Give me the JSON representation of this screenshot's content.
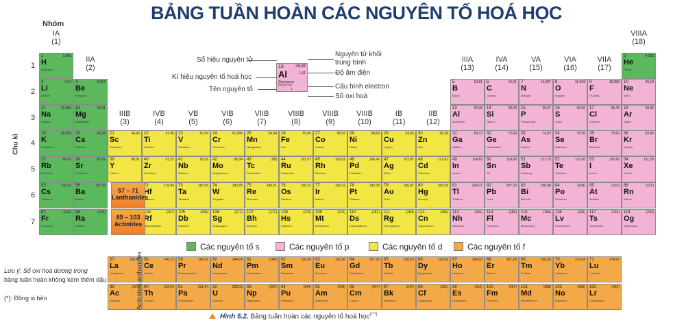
{
  "title": "BẢNG TUẦN HOÀN CÁC NGUYÊN TỐ HOÁ HỌC",
  "group_header_label": "Nhóm",
  "period_axis_label": "Chu kì",
  "groups": [
    {
      "roman": "IA",
      "num": "(1)"
    },
    {
      "roman": "IIA",
      "num": "(2)"
    },
    {
      "roman": "IIIB",
      "num": "(3)"
    },
    {
      "roman": "IVB",
      "num": "(4)"
    },
    {
      "roman": "VB",
      "num": "(5)"
    },
    {
      "roman": "VIB",
      "num": "(6)"
    },
    {
      "roman": "VIIB",
      "num": "(7)"
    },
    {
      "roman": "VIIIB",
      "num": "(8)"
    },
    {
      "roman": "VIIIB",
      "num": "(9)"
    },
    {
      "roman": "VIIIB",
      "num": "(10)"
    },
    {
      "roman": "IB",
      "num": "(11)"
    },
    {
      "roman": "IIB",
      "num": "(12)"
    },
    {
      "roman": "IIIA",
      "num": "(13)"
    },
    {
      "roman": "IVA",
      "num": "(14)"
    },
    {
      "roman": "VA",
      "num": "(15)"
    },
    {
      "roman": "VIA",
      "num": "(16)"
    },
    {
      "roman": "VIIA",
      "num": "(17)"
    },
    {
      "roman": "VIIIA",
      "num": "(18)"
    }
  ],
  "periods": [
    "1",
    "2",
    "3",
    "4",
    "5",
    "6",
    "7"
  ],
  "block_colors": {
    "s": "#5cb85c",
    "p": "#f3b3d4",
    "d": "#f2e645",
    "f": "#f4a948"
  },
  "key": {
    "labels_left": [
      "Số hiệu nguyên tử",
      "Kí hiệu nguyên tố hoá học",
      "Tên nguyên tố"
    ],
    "labels_right": [
      "Nguyên tử khối trung bình",
      "Độ âm điện",
      "Cấu hình electron",
      "Số oxi hoá"
    ],
    "sample": {
      "z": "13",
      "mass": "26,98",
      "en": "1,61",
      "symbol": "Al",
      "name": "Aluminium",
      "config": "[Ne]3s²3p¹",
      "ox": "3"
    }
  },
  "lanthanide_block": {
    "range": "57 – 71",
    "label": "Lanthanides"
  },
  "actinide_block": {
    "range": "89 – 103",
    "label": "Actinides"
  },
  "lanthanide_row_label": "Lanthanides",
  "actinide_row_label": "Actinides",
  "legend": [
    "Các nguyên tố s",
    "Các nguyên tố p",
    "Các nguyên tố d",
    "Các nguyên tố f"
  ],
  "note_lines": [
    "Lưu ý: Số oxi hoá dương trong",
    "bảng tuần hoàn không kèm thêm dấu",
    "(*): Đồng vị bền"
  ],
  "caption_fig": "Hình 5.2.",
  "caption_text": "Bảng tuần hoàn các nguyên tố hoá học",
  "caption_sup": "(***)",
  "elements": [
    {
      "z": 1,
      "s": "H",
      "n": "Hydrogen",
      "m": "1,008",
      "b": "s",
      "g": 1,
      "p": 1
    },
    {
      "z": 2,
      "s": "He",
      "n": "Helium",
      "m": "4,003",
      "b": "s",
      "g": 18,
      "p": 1
    },
    {
      "z": 3,
      "s": "Li",
      "n": "Lithium",
      "m": "6,94",
      "b": "s",
      "g": 1,
      "p": 2
    },
    {
      "z": 4,
      "s": "Be",
      "n": "Beryllium",
      "m": "9,012",
      "b": "s",
      "g": 2,
      "p": 2
    },
    {
      "z": 5,
      "s": "B",
      "n": "Boron",
      "m": "10,81",
      "b": "p",
      "g": 13,
      "p": 2
    },
    {
      "z": 6,
      "s": "C",
      "n": "Carbon",
      "m": "12,01",
      "b": "p",
      "g": 14,
      "p": 2
    },
    {
      "z": 7,
      "s": "N",
      "n": "Nitrogen",
      "m": "14,007",
      "b": "p",
      "g": 15,
      "p": 2
    },
    {
      "z": 8,
      "s": "O",
      "n": "Oxygen",
      "m": "15,999",
      "b": "p",
      "g": 16,
      "p": 2
    },
    {
      "z": 9,
      "s": "F",
      "n": "Fluorine",
      "m": "18,998",
      "b": "p",
      "g": 17,
      "p": 2
    },
    {
      "z": 10,
      "s": "Ne",
      "n": "Neon",
      "m": "20,18",
      "b": "p",
      "g": 18,
      "p": 2
    },
    {
      "z": 11,
      "s": "Na",
      "n": "Sodium",
      "m": "22,989",
      "b": "s",
      "g": 1,
      "p": 3
    },
    {
      "z": 12,
      "s": "Mg",
      "n": "Magnesium",
      "m": "24,31",
      "b": "s",
      "g": 2,
      "p": 3
    },
    {
      "z": 13,
      "s": "Al",
      "n": "Aluminium",
      "m": "26,98",
      "b": "p",
      "g": 13,
      "p": 3
    },
    {
      "z": 14,
      "s": "Si",
      "n": "Silicon",
      "m": "28,09",
      "b": "p",
      "g": 14,
      "p": 3
    },
    {
      "z": 15,
      "s": "P",
      "n": "Phosphorus",
      "m": "30,97",
      "b": "p",
      "g": 15,
      "p": 3
    },
    {
      "z": 16,
      "s": "S",
      "n": "Sulfur",
      "m": "32,06",
      "b": "p",
      "g": 16,
      "p": 3
    },
    {
      "z": 17,
      "s": "Cl",
      "n": "Chlorine",
      "m": "35,45",
      "b": "p",
      "g": 17,
      "p": 3
    },
    {
      "z": 18,
      "s": "Ar",
      "n": "Argon",
      "m": "39,95",
      "b": "p",
      "g": 18,
      "p": 3
    },
    {
      "z": 19,
      "s": "K",
      "n": "Potassium",
      "m": "39,098",
      "b": "s",
      "g": 1,
      "p": 4
    },
    {
      "z": 20,
      "s": "Ca",
      "n": "Calcium",
      "m": "40,08",
      "b": "s",
      "g": 2,
      "p": 4
    },
    {
      "z": 21,
      "s": "Sc",
      "n": "Scandium",
      "m": "44,96",
      "b": "d",
      "g": 3,
      "p": 4
    },
    {
      "z": 22,
      "s": "Ti",
      "n": "Titanium",
      "m": "47,90",
      "b": "d",
      "g": 4,
      "p": 4
    },
    {
      "z": 23,
      "s": "V",
      "n": "Vanadium",
      "m": "50,94",
      "b": "d",
      "g": 5,
      "p": 4
    },
    {
      "z": 24,
      "s": "Cr",
      "n": "Chromium",
      "m": "51,996",
      "b": "d",
      "g": 6,
      "p": 4
    },
    {
      "z": 25,
      "s": "Mn",
      "n": "Manganese",
      "m": "54,94",
      "b": "d",
      "g": 7,
      "p": 4
    },
    {
      "z": 26,
      "s": "Fe",
      "n": "Iron",
      "m": "55,85",
      "b": "d",
      "g": 8,
      "p": 4
    },
    {
      "z": 27,
      "s": "Co",
      "n": "Cobalt",
      "m": "58,93",
      "b": "d",
      "g": 9,
      "p": 4
    },
    {
      "z": 28,
      "s": "Ni",
      "n": "Nickel",
      "m": "58,69",
      "b": "d",
      "g": 10,
      "p": 4
    },
    {
      "z": 29,
      "s": "Cu",
      "n": "Copper",
      "m": "63,55",
      "b": "d",
      "g": 11,
      "p": 4
    },
    {
      "z": 30,
      "s": "Zn",
      "n": "Zinc",
      "m": "65,38",
      "b": "d",
      "g": 12,
      "p": 4
    },
    {
      "z": 31,
      "s": "Ga",
      "n": "Gallium",
      "m": "69,72",
      "b": "p",
      "g": 13,
      "p": 4
    },
    {
      "z": 32,
      "s": "Ge",
      "n": "Germanium",
      "m": "72,64",
      "b": "p",
      "g": 14,
      "p": 4
    },
    {
      "z": 33,
      "s": "As",
      "n": "Arsenic",
      "m": "74,92",
      "b": "p",
      "g": 15,
      "p": 4
    },
    {
      "z": 34,
      "s": "Se",
      "n": "Selenium",
      "m": "78,96",
      "b": "p",
      "g": 16,
      "p": 4
    },
    {
      "z": 35,
      "s": "Br",
      "n": "Bromine",
      "m": "79,90",
      "b": "p",
      "g": 17,
      "p": 4
    },
    {
      "z": 36,
      "s": "Kr",
      "n": "Krypton",
      "m": "83,80",
      "b": "p",
      "g": 18,
      "p": 4
    },
    {
      "z": 37,
      "s": "Rb",
      "n": "Rubidium",
      "m": "85,47",
      "b": "s",
      "g": 1,
      "p": 5
    },
    {
      "z": 38,
      "s": "Sr",
      "n": "Strontium",
      "m": "87,62",
      "b": "s",
      "g": 2,
      "p": 5
    },
    {
      "z": 39,
      "s": "Y",
      "n": "Yttrium",
      "m": "88,91",
      "b": "d",
      "g": 3,
      "p": 5
    },
    {
      "z": 40,
      "s": "Zr",
      "n": "Zirconium",
      "m": "91,22",
      "b": "d",
      "g": 4,
      "p": 5
    },
    {
      "z": 41,
      "s": "Nb",
      "n": "Niobium",
      "m": "92,91",
      "b": "d",
      "g": 5,
      "p": 5
    },
    {
      "z": 42,
      "s": "Mo",
      "n": "Molybdenum",
      "m": "95,94",
      "b": "d",
      "g": 6,
      "p": 5
    },
    {
      "z": 43,
      "s": "Tc",
      "n": "Technetium",
      "m": "(98)",
      "b": "d",
      "g": 7,
      "p": 5
    },
    {
      "z": 44,
      "s": "Ru",
      "n": "Ruthenium",
      "m": "101,07",
      "b": "d",
      "g": 8,
      "p": 5
    },
    {
      "z": 45,
      "s": "Rh",
      "n": "Rhodium",
      "m": "102,91",
      "b": "d",
      "g": 9,
      "p": 5
    },
    {
      "z": 46,
      "s": "Pd",
      "n": "Palladium",
      "m": "106,42",
      "b": "d",
      "g": 10,
      "p": 5
    },
    {
      "z": 47,
      "s": "Ag",
      "n": "Silver",
      "m": "107,87",
      "b": "d",
      "g": 11,
      "p": 5
    },
    {
      "z": 48,
      "s": "Cd",
      "n": "Cadmium",
      "m": "112,41",
      "b": "d",
      "g": 12,
      "p": 5
    },
    {
      "z": 49,
      "s": "In",
      "n": "Indium",
      "m": "114,82",
      "b": "p",
      "g": 13,
      "p": 5
    },
    {
      "z": 50,
      "s": "Sn",
      "n": "Tin",
      "m": "118,69",
      "b": "p",
      "g": 14,
      "p": 5
    },
    {
      "z": 51,
      "s": "Sb",
      "n": "Antimony",
      "m": "121,75",
      "b": "p",
      "g": 15,
      "p": 5
    },
    {
      "z": 52,
      "s": "Te",
      "n": "Tellurium",
      "m": "127,60",
      "b": "p",
      "g": 16,
      "p": 5
    },
    {
      "z": 53,
      "s": "I",
      "n": "Iodine",
      "m": "126,90",
      "b": "p",
      "g": 17,
      "p": 5
    },
    {
      "z": 54,
      "s": "Xe",
      "n": "Xenon",
      "m": "131,29",
      "b": "p",
      "g": 18,
      "p": 5
    },
    {
      "z": 55,
      "s": "Cs",
      "n": "Caesium",
      "m": "132,91",
      "b": "s",
      "g": 1,
      "p": 6
    },
    {
      "z": 56,
      "s": "Ba",
      "n": "Barium",
      "m": "137,33",
      "b": "s",
      "g": 2,
      "p": 6
    },
    {
      "z": 72,
      "s": "Hf",
      "n": "Hafnium",
      "m": "178,49",
      "b": "d",
      "g": 4,
      "p": 6
    },
    {
      "z": 73,
      "s": "Ta",
      "n": "Tantalum",
      "m": "180,95",
      "b": "d",
      "g": 5,
      "p": 6
    },
    {
      "z": 74,
      "s": "W",
      "n": "Tungsten",
      "m": "183,85",
      "b": "d",
      "g": 6,
      "p": 6
    },
    {
      "z": 75,
      "s": "Re",
      "n": "Rhenium",
      "m": "186,21",
      "b": "d",
      "g": 7,
      "p": 6
    },
    {
      "z": 76,
      "s": "Os",
      "n": "Osmium",
      "m": "190,23",
      "b": "d",
      "g": 8,
      "p": 6
    },
    {
      "z": 77,
      "s": "Ir",
      "n": "Iridium",
      "m": "192,22",
      "b": "d",
      "g": 9,
      "p": 6
    },
    {
      "z": 78,
      "s": "Pt",
      "n": "Platinum",
      "m": "195,08",
      "b": "d",
      "g": 10,
      "p": 6
    },
    {
      "z": 79,
      "s": "Au",
      "n": "Gold",
      "m": "196,97",
      "b": "d",
      "g": 11,
      "p": 6
    },
    {
      "z": 80,
      "s": "Hg",
      "n": "Mercury",
      "m": "200,59",
      "b": "d",
      "g": 12,
      "p": 6
    },
    {
      "z": 81,
      "s": "Tl",
      "n": "Thallium",
      "m": "204,37",
      "b": "p",
      "g": 13,
      "p": 6
    },
    {
      "z": 82,
      "s": "Pb",
      "n": "Lead",
      "m": "207,20",
      "b": "p",
      "g": 14,
      "p": 6
    },
    {
      "z": 83,
      "s": "Bi",
      "n": "Bismuth",
      "m": "208,98",
      "b": "p",
      "g": 15,
      "p": 6
    },
    {
      "z": 84,
      "s": "Po",
      "n": "Polonium",
      "m": "(209)",
      "b": "p",
      "g": 16,
      "p": 6
    },
    {
      "z": 85,
      "s": "At",
      "n": "Astatine",
      "m": "(210)",
      "b": "p",
      "g": 17,
      "p": 6
    },
    {
      "z": 86,
      "s": "Rn",
      "n": "Radon",
      "m": "(222)",
      "b": "p",
      "g": 18,
      "p": 6
    },
    {
      "z": 87,
      "s": "Fr",
      "n": "Francium",
      "m": "(223)",
      "b": "s",
      "g": 1,
      "p": 7
    },
    {
      "z": 88,
      "s": "Ra",
      "n": "Radium",
      "m": "(226)",
      "b": "s",
      "g": 2,
      "p": 7
    },
    {
      "z": 104,
      "s": "Rf",
      "n": "Rutherfordium",
      "m": "(267)",
      "b": "d",
      "g": 4,
      "p": 7
    },
    {
      "z": 105,
      "s": "Db",
      "n": "Dubnium",
      "m": "(268)",
      "b": "d",
      "g": 5,
      "p": 7
    },
    {
      "z": 106,
      "s": "Sg",
      "n": "Seaborgium",
      "m": "(271)",
      "b": "d",
      "g": 6,
      "p": 7
    },
    {
      "z": 107,
      "s": "Bh",
      "n": "Bohrium",
      "m": "(272)",
      "b": "d",
      "g": 7,
      "p": 7
    },
    {
      "z": 108,
      "s": "Hs",
      "n": "Hassium",
      "m": "(270)",
      "b": "d",
      "g": 8,
      "p": 7
    },
    {
      "z": 109,
      "s": "Mt",
      "n": "Meitnerium",
      "m": "(276)",
      "b": "d",
      "g": 9,
      "p": 7
    },
    {
      "z": 110,
      "s": "Ds",
      "n": "Darmstadtium",
      "m": "(281)",
      "b": "d",
      "g": 10,
      "p": 7
    },
    {
      "z": 111,
      "s": "Rg",
      "n": "Roentgenium",
      "m": "(280)",
      "b": "d",
      "g": 11,
      "p": 7
    },
    {
      "z": 112,
      "s": "Cn",
      "n": "Copernicium",
      "m": "(285)",
      "b": "d",
      "g": 12,
      "p": 7
    },
    {
      "z": 113,
      "s": "Nh",
      "n": "Nihonium",
      "m": "(286)",
      "b": "p",
      "g": 13,
      "p": 7
    },
    {
      "z": 114,
      "s": "Fl",
      "n": "Flerovium",
      "m": "(289)",
      "b": "p",
      "g": 14,
      "p": 7
    },
    {
      "z": 115,
      "s": "Mc",
      "n": "Moscovium",
      "m": "(289)",
      "b": "p",
      "g": 15,
      "p": 7
    },
    {
      "z": 116,
      "s": "Lv",
      "n": "Livermorium",
      "m": "(293)",
      "b": "p",
      "g": 16,
      "p": 7
    },
    {
      "z": 117,
      "s": "Ts",
      "n": "Tennessine",
      "m": "(294)",
      "b": "p",
      "g": 17,
      "p": 7
    },
    {
      "z": 118,
      "s": "Og",
      "n": "Oganesson",
      "m": "(294)",
      "b": "p",
      "g": 18,
      "p": 7
    },
    {
      "z": 57,
      "s": "La",
      "n": "Lanthanum",
      "m": "138,91",
      "b": "f",
      "g": 3,
      "p": 8
    },
    {
      "z": 58,
      "s": "Ce",
      "n": "Cerium",
      "m": "140,12",
      "b": "f",
      "g": 4,
      "p": 8
    },
    {
      "z": 59,
      "s": "Pr",
      "n": "Praseodymium",
      "m": "140,91",
      "b": "f",
      "g": 5,
      "p": 8
    },
    {
      "z": 60,
      "s": "Nd",
      "n": "Neodymium",
      "m": "144,24",
      "b": "f",
      "g": 6,
      "p": 8
    },
    {
      "z": 61,
      "s": "Pm",
      "n": "Promethium",
      "m": "(145)",
      "b": "f",
      "g": 7,
      "p": 8
    },
    {
      "z": 62,
      "s": "Sm",
      "n": "Samarium",
      "m": "150,36",
      "b": "f",
      "g": 8,
      "p": 8
    },
    {
      "z": 63,
      "s": "Eu",
      "n": "Europium",
      "m": "151,96",
      "b": "f",
      "g": 9,
      "p": 8
    },
    {
      "z": 64,
      "s": "Gd",
      "n": "Gadolinium",
      "m": "157,25",
      "b": "f",
      "g": 10,
      "p": 8
    },
    {
      "z": 65,
      "s": "Tb",
      "n": "Terbium",
      "m": "158,93",
      "b": "f",
      "g": 11,
      "p": 8
    },
    {
      "z": 66,
      "s": "Dy",
      "n": "Dysprosium",
      "m": "162,50",
      "b": "f",
      "g": 12,
      "p": 8
    },
    {
      "z": 67,
      "s": "Ho",
      "n": "Holmium",
      "m": "164,93",
      "b": "f",
      "g": 13,
      "p": 8
    },
    {
      "z": 68,
      "s": "Er",
      "n": "Erbium",
      "m": "167,26",
      "b": "f",
      "g": 14,
      "p": 8
    },
    {
      "z": 69,
      "s": "Tm",
      "n": "Thulium",
      "m": "168,93",
      "b": "f",
      "g": 15,
      "p": 8
    },
    {
      "z": 70,
      "s": "Yb",
      "n": "Ytterbium",
      "m": "173,04",
      "b": "f",
      "g": 16,
      "p": 8
    },
    {
      "z": 71,
      "s": "Lu",
      "n": "Lutetium",
      "m": "174,97",
      "b": "f",
      "g": 17,
      "p": 8
    },
    {
      "z": 89,
      "s": "Ac",
      "n": "Actinium",
      "m": "(227)",
      "b": "f",
      "g": 3,
      "p": 9
    },
    {
      "z": 90,
      "s": "Th",
      "n": "Thorium",
      "m": "232,04",
      "b": "f",
      "g": 4,
      "p": 9
    },
    {
      "z": 91,
      "s": "Pa",
      "n": "Protactinium",
      "m": "231,04",
      "b": "f",
      "g": 5,
      "p": 9
    },
    {
      "z": 92,
      "s": "U",
      "n": "Uranium",
      "m": "238,03",
      "b": "f",
      "g": 6,
      "p": 9
    },
    {
      "z": 93,
      "s": "Np",
      "n": "Neptunium",
      "m": "(237)",
      "b": "f",
      "g": 7,
      "p": 9
    },
    {
      "z": 94,
      "s": "Pu",
      "n": "Plutonium",
      "m": "(244)",
      "b": "f",
      "g": 8,
      "p": 9
    },
    {
      "z": 95,
      "s": "Am",
      "n": "Americium",
      "m": "(243)",
      "b": "f",
      "g": 9,
      "p": 9
    },
    {
      "z": 96,
      "s": "Cm",
      "n": "Curium",
      "m": "(247)",
      "b": "f",
      "g": 10,
      "p": 9
    },
    {
      "z": 97,
      "s": "Bk",
      "n": "Berkelium",
      "m": "(247)",
      "b": "f",
      "g": 11,
      "p": 9
    },
    {
      "z": 98,
      "s": "Cf",
      "n": "Californium",
      "m": "(251)",
      "b": "f",
      "g": 12,
      "p": 9
    },
    {
      "z": 99,
      "s": "Es",
      "n": "Einsteinium",
      "m": "(252)",
      "b": "f",
      "g": 13,
      "p": 9
    },
    {
      "z": 100,
      "s": "Fm",
      "n": "Fermium",
      "m": "(257)",
      "b": "f",
      "g": 14,
      "p": 9
    },
    {
      "z": 101,
      "s": "Md",
      "n": "Mendelevium",
      "m": "(258)",
      "b": "f",
      "g": 15,
      "p": 9
    },
    {
      "z": 102,
      "s": "No",
      "n": "Nobelium",
      "m": "(259)",
      "b": "f",
      "g": 16,
      "p": 9
    },
    {
      "z": 103,
      "s": "Lr",
      "n": "Lawrencium",
      "m": "(262)",
      "b": "f",
      "g": 17,
      "p": 9
    }
  ]
}
